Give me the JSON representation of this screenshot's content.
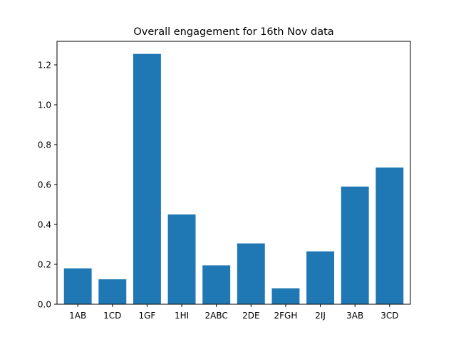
{
  "chart_data": {
    "type": "bar",
    "title": "Overall engagement for 16th Nov data",
    "xlabel": "",
    "ylabel": "",
    "categories": [
      "1AB",
      "1CD",
      "1GF",
      "1HI",
      "2ABC",
      "2DE",
      "2FGH",
      "2IJ",
      "3AB",
      "3CD"
    ],
    "values": [
      0.18,
      0.125,
      1.255,
      0.45,
      0.195,
      0.305,
      0.08,
      0.265,
      0.59,
      0.685
    ],
    "ylim": [
      0,
      1.318
    ],
    "yticks": [
      0.0,
      0.2,
      0.4,
      0.6,
      0.8,
      1.0,
      1.2
    ],
    "ytick_labels": [
      "0.0",
      "0.2",
      "0.4",
      "0.6",
      "0.8",
      "1.0",
      "1.2"
    ],
    "grid": false,
    "legend": "none",
    "bar_color": "#1f77b4"
  }
}
